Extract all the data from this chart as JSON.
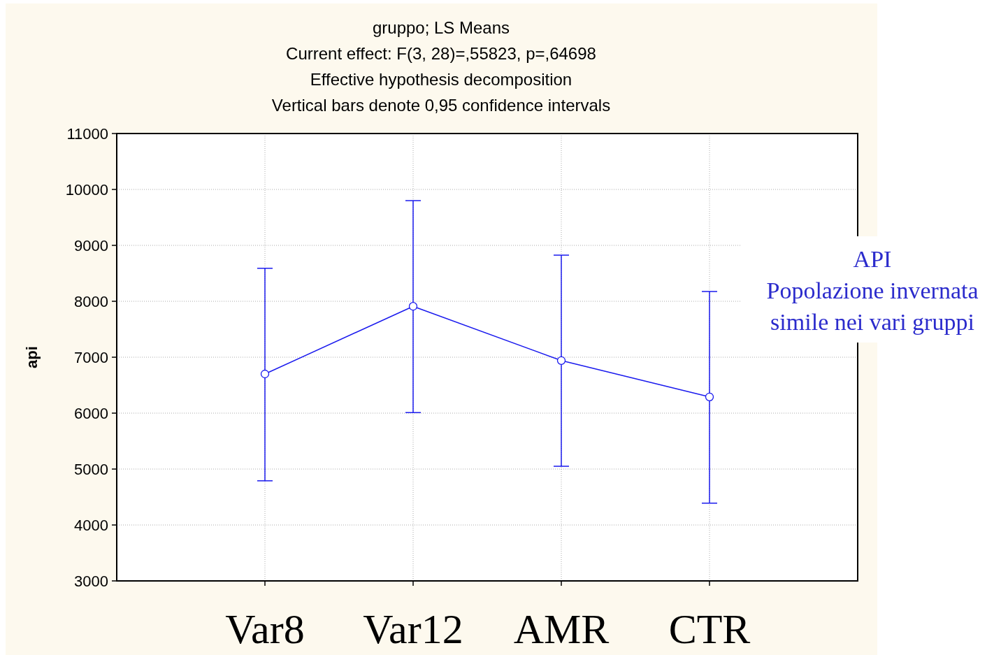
{
  "chart_data": {
    "type": "line",
    "title": "gruppo; LS Means",
    "subtitle": "Current effect: F(3, 28)=,55823, p=,64698\nEffective hypothesis decomposition\nVertical bars denote 0,95 confidence intervals",
    "ylabel": "api",
    "categories": [
      "Var8",
      "Var12",
      "AMR",
      "CTR"
    ],
    "series": [
      {
        "color": "#1a1aee",
        "values": [
          6700,
          7910,
          6940,
          6290
        ],
        "errors": [
          [
            4790,
            8590
          ],
          [
            6010,
            9800
          ],
          [
            5050,
            8825
          ],
          [
            4390,
            8175
          ]
        ]
      }
    ],
    "ylim": [
      3000,
      11000
    ],
    "yticks": [
      3000,
      4000,
      5000,
      6000,
      7000,
      8000,
      9000,
      10000,
      11000
    ],
    "grid": true,
    "marker": "circle",
    "line_style": "solid",
    "annotations": [
      "API\nPopolazione invernata\nsimile nei vari gruppi"
    ]
  }
}
